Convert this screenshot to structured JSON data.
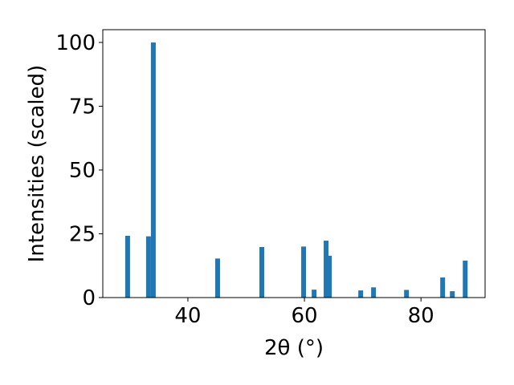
{
  "chart_data": {
    "type": "bar",
    "x_label": "2θ (°)",
    "y_label": "Intensities (scaled)",
    "x": [
      29.66,
      33.24,
      34.07,
      45.1,
      52.69,
      59.86,
      61.66,
      63.72,
      64.28,
      69.66,
      71.86,
      77.52,
      83.72,
      85.38,
      87.59
    ],
    "values": [
      24.2,
      24,
      100,
      15.3,
      19.8,
      20,
      3.1,
      22.3,
      16.4,
      2.8,
      4,
      3,
      7.9,
      2.5,
      14.5
    ],
    "color": "#1f77b4",
    "xlim": [
      25.4,
      91.0
    ],
    "ylim": [
      0,
      105
    ],
    "xticks": [
      40,
      60,
      80
    ],
    "yticks": [
      0,
      25,
      50,
      75,
      100
    ],
    "grid": false
  }
}
